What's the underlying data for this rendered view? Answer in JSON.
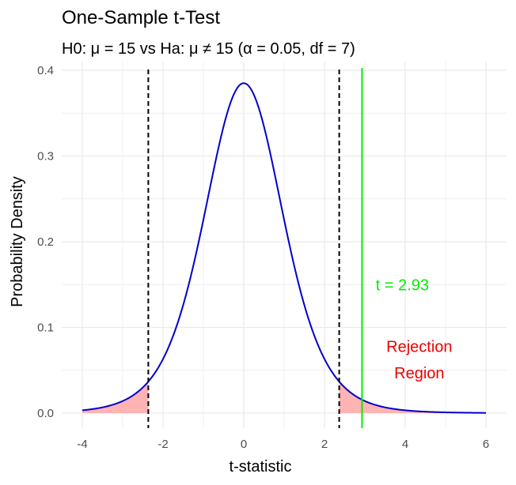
{
  "chart_data": {
    "type": "line",
    "title": "One-Sample t-Test",
    "subtitle": "H0: μ = 15 vs Ha: μ ≠ 15 (α = 0.05, df = 7)",
    "xlabel": "t-statistic",
    "ylabel": "Probability Density",
    "xlim": [
      -4,
      6
    ],
    "ylim": [
      0,
      0.4
    ],
    "x_ticks": [
      "-4",
      "-2",
      "0",
      "2",
      "4",
      "6"
    ],
    "y_ticks": [
      "0.0",
      "0.1",
      "0.2",
      "0.3",
      "0.4"
    ],
    "grid": true,
    "df": 7,
    "critical_values": [
      -2.365,
      2.365
    ],
    "t_statistic": 2.93,
    "annotations": {
      "t_label": "t = 2.93",
      "region_label_line1": "Rejection",
      "region_label_line2": "Region"
    },
    "colors": {
      "curve": "#0000cc",
      "rejection_fill": "#ffb3b3",
      "critical_line": "#000000",
      "t_line": "#00ee00",
      "region_text": "#ee0000",
      "grid": "#ebebeb"
    }
  }
}
